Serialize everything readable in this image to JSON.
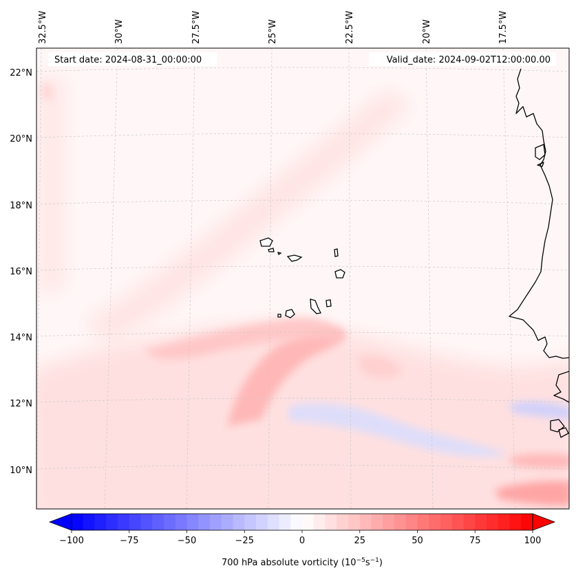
{
  "map": {
    "title_left": "Start date: 2024-08-31_00:00:00",
    "title_right": "Valid_date: 2024-09-02T12:00:00.00",
    "lon_labels": [
      "32.5°W",
      "30°W",
      "27.5°W",
      "25°W",
      "22.5°W",
      "20°W",
      "17.5°W"
    ],
    "lat_labels": [
      "22°N",
      "20°N",
      "18°N",
      "16°N",
      "14°N",
      "12°N",
      "10°N"
    ],
    "field": "700 hPa absolute vorticity",
    "features": [
      "Cape Verde islands",
      "West African coastline (Senegal, Gambia, Guinea-Bissau)"
    ]
  },
  "colorbar": {
    "label": "700 hPa absolute vorticity (10",
    "label_exp1": "−5",
    "label_mid": "s",
    "label_exp2": "−1",
    "label_end": ")",
    "ticks": [
      "−100",
      "−75",
      "−50",
      "−25",
      "0",
      "25",
      "50",
      "75",
      "100"
    ],
    "min": -100,
    "max": 100,
    "step": 5,
    "colors": {
      "negative": "#0000ff",
      "zero": "#ffffff",
      "positive": "#ff0000"
    }
  }
}
